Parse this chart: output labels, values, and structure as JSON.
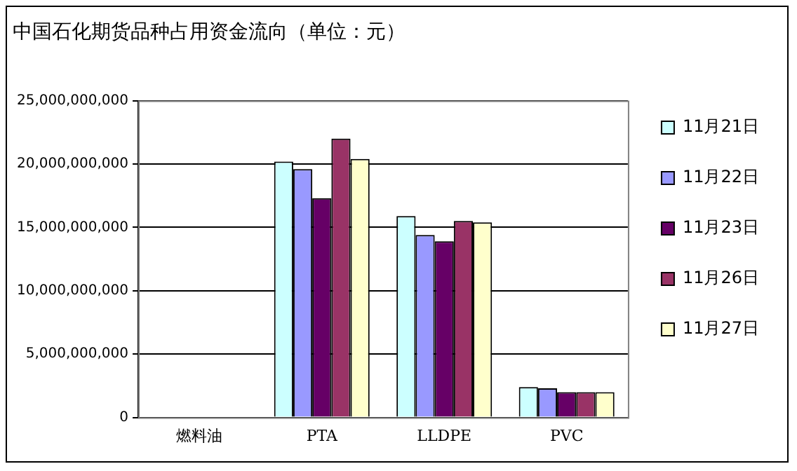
{
  "chart_data": {
    "type": "bar",
    "title": "中国石化期货品种占用资金流向（单位：元）",
    "categories": [
      "燃料油",
      "PTA",
      "LLDPE",
      "PVC"
    ],
    "series": [
      {
        "name": "11月21日",
        "color": "#ccffff",
        "values": [
          0,
          20200000000,
          15900000000,
          2400000000
        ]
      },
      {
        "name": "11月22日",
        "color": "#9999ff",
        "values": [
          0,
          19600000000,
          14400000000,
          2300000000
        ]
      },
      {
        "name": "11月23日",
        "color": "#660066",
        "values": [
          0,
          17300000000,
          13900000000,
          2000000000
        ]
      },
      {
        "name": "11月26日",
        "color": "#993366",
        "values": [
          0,
          22000000000,
          15500000000,
          2000000000
        ]
      },
      {
        "name": "11月27日",
        "color": "#ffffcc",
        "values": [
          0,
          20400000000,
          15400000000,
          2000000000
        ]
      }
    ],
    "ylim": [
      0,
      25000000000
    ],
    "yticks": [
      0,
      {
        "value": 5000000000,
        "label": "5,000,000,000"
      },
      {
        "value": 10000000000,
        "label": "10,000,000,000"
      },
      {
        "value": 15000000000,
        "label": "15,000,000,000"
      },
      {
        "value": 20000000000,
        "label": "20,000,000,000"
      },
      {
        "value": 25000000000,
        "label": "25,000,000,000"
      }
    ],
    "grid": "y",
    "legend": "right"
  }
}
